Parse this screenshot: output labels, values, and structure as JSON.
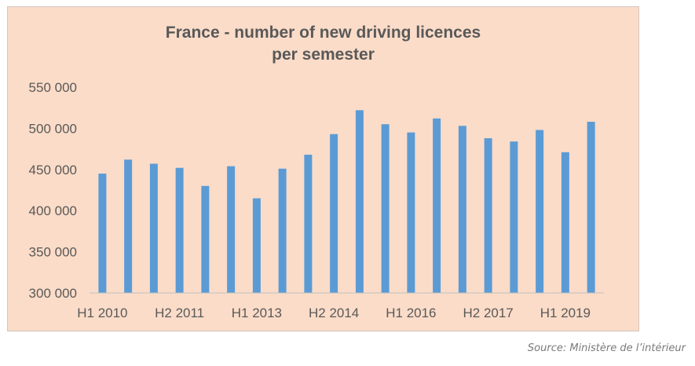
{
  "chart_data": {
    "type": "bar",
    "title_lines": [
      "France - number of new driving licences",
      "per semester"
    ],
    "categories": [
      "H1 2010",
      "H2 2010",
      "H1 2011",
      "H2 2011",
      "H1 2012",
      "H2 2012",
      "H1 2013",
      "H2 2013",
      "H1 2014",
      "H2 2014",
      "H1 2015",
      "H2 2015",
      "H1 2016",
      "H2 2016",
      "H1 2017",
      "H2 2017",
      "H1 2018",
      "H2 2018",
      "H1 2019",
      "H2 2019"
    ],
    "shown_tick_labels": [
      "H1 2010",
      "H2 2011",
      "H1 2013",
      "H2 2014",
      "H1 2016",
      "H2 2017",
      "H1 2019"
    ],
    "values": [
      445000,
      462000,
      457000,
      452000,
      430000,
      454000,
      415000,
      451000,
      468000,
      493000,
      522000,
      505000,
      495000,
      512000,
      503000,
      488000,
      484000,
      498000,
      471000,
      508000
    ],
    "ylim": [
      300000,
      550000
    ],
    "yticks": [
      300000,
      350000,
      400000,
      450000,
      500000,
      550000
    ],
    "ytick_labels": [
      "300 000",
      "350 000",
      "400 000",
      "450 000",
      "500 000",
      "550 000"
    ],
    "xlabel": "",
    "ylabel": "",
    "bar_color": "#5b9bd5",
    "background_color": "#fbdcc8",
    "grid": false,
    "legend": "none"
  },
  "source": "Source: Ministère de l’intérieur"
}
